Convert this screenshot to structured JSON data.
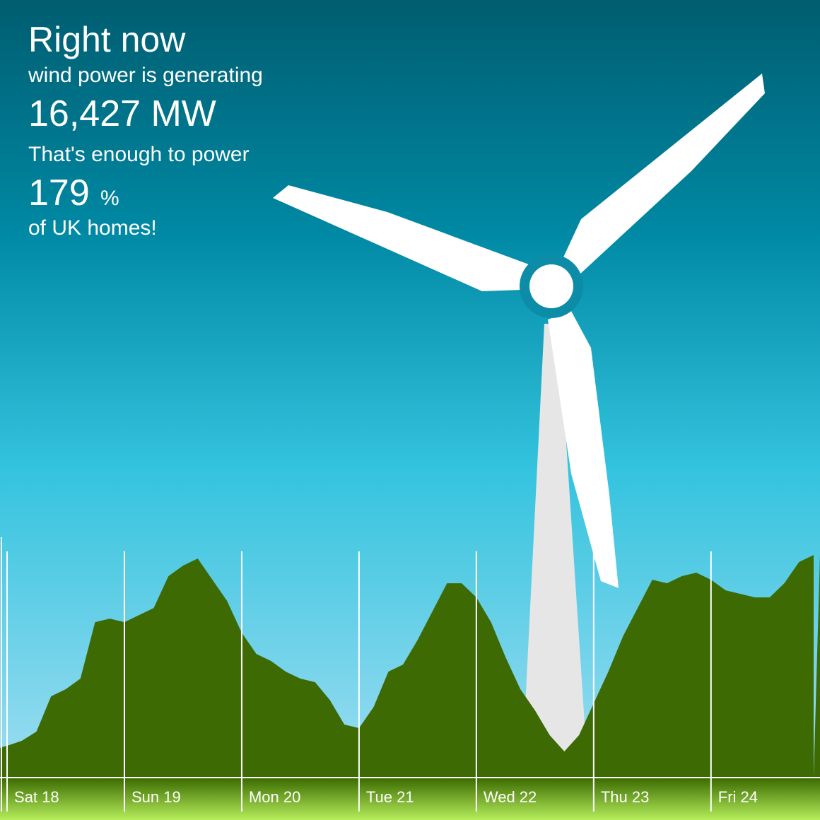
{
  "header": {
    "title": "Right now",
    "line1": "wind power is generating",
    "output": "16,427 MW",
    "line2": "That's enough to power",
    "homes_percent": "179",
    "percent_sign": "%",
    "line3": "of UK homes!"
  },
  "chart_data": {
    "type": "area",
    "color": "#3d6a03",
    "x": [
      -1.5,
      0,
      3,
      6,
      9,
      12,
      15,
      18,
      21,
      24,
      27,
      30,
      33,
      36,
      39,
      42,
      45,
      48,
      51,
      54,
      57,
      60,
      63,
      66,
      69,
      72,
      75,
      78,
      81,
      84,
      87,
      90,
      93,
      96,
      99,
      102,
      105,
      108,
      111,
      114,
      117,
      120,
      123,
      126,
      129,
      132,
      135,
      138,
      141,
      144,
      147,
      150,
      153,
      156,
      159,
      162,
      165
    ],
    "values": [
      2184,
      2340,
      2704,
      3380,
      5980,
      6500,
      7280,
      11440,
      11700,
      11440,
      11960,
      12480,
      14820,
      15600,
      16120,
      14560,
      13000,
      10660,
      9100,
      8580,
      7800,
      7280,
      7020,
      5720,
      3900,
      3640,
      5200,
      7800,
      8320,
      10140,
      12220,
      14300,
      14300,
      13260,
      11440,
      8840,
      6500,
      4940,
      3120,
      1924,
      3120,
      5460,
      7800,
      10400,
      12480,
      14560,
      14300,
      14820,
      15080,
      14560,
      13780,
      13520,
      13260,
      13260,
      14300,
      15860,
      16380
    ],
    "xlim": [
      -1.45,
      166.3
    ],
    "ylim": [
      0,
      18000
    ],
    "xticks": [
      {
        "value": 0,
        "label": "Sat 18"
      },
      {
        "value": 24,
        "label": "Sun 19"
      },
      {
        "value": 48,
        "label": "Mon 20"
      },
      {
        "value": 72,
        "label": "Tue 21"
      },
      {
        "value": 96,
        "label": "Wed 22"
      },
      {
        "value": 120,
        "label": "Thu 23"
      },
      {
        "value": 144,
        "label": "Fri 24"
      }
    ],
    "grid": true
  }
}
